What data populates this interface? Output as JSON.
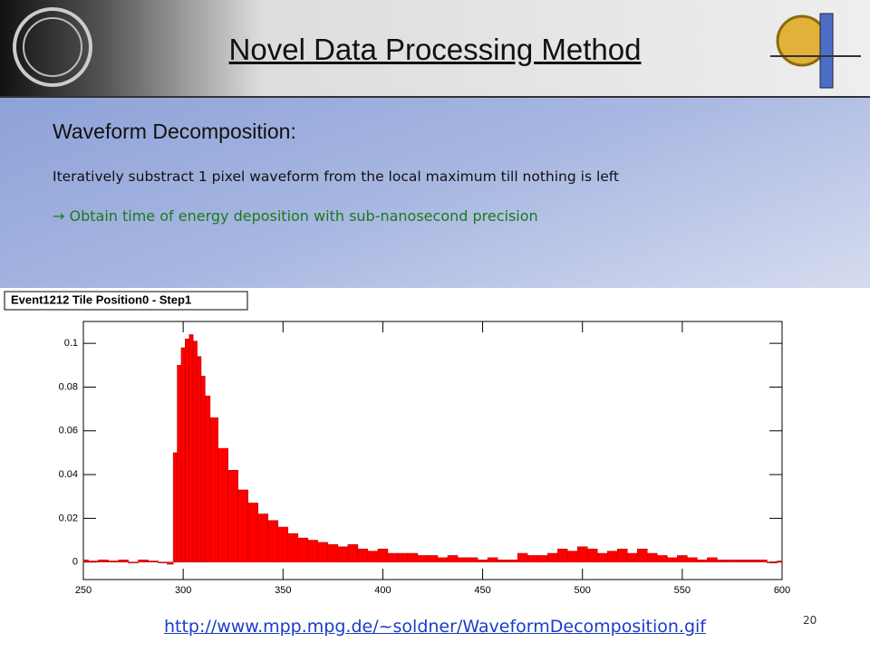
{
  "header": {
    "title": "Novel Data Processing Method"
  },
  "body": {
    "heading": "Waveform Decomposition:",
    "line": "Iteratively substract 1 pixel waveform from the local maximum till nothing is left",
    "result": "→ Obtain time of energy deposition with sub-nanosecond precision"
  },
  "chart_data": {
    "type": "bar",
    "title": "Event1212 Tile Position0 - Step1",
    "color": "#ff0000",
    "x": [
      250,
      255,
      260,
      265,
      270,
      275,
      280,
      285,
      290,
      294,
      296,
      298,
      300,
      302,
      304,
      306,
      308,
      310,
      312,
      315,
      320,
      325,
      330,
      335,
      340,
      345,
      350,
      355,
      360,
      365,
      370,
      375,
      380,
      385,
      390,
      395,
      400,
      405,
      410,
      415,
      420,
      425,
      430,
      435,
      440,
      445,
      450,
      455,
      460,
      465,
      470,
      475,
      480,
      485,
      490,
      495,
      500,
      505,
      510,
      515,
      520,
      525,
      530,
      535,
      540,
      545,
      550,
      555,
      560,
      565,
      570,
      575,
      580,
      585,
      590,
      595,
      600
    ],
    "values": [
      0.001,
      0.0005,
      0.001,
      0.0005,
      0.001,
      0,
      0.001,
      0.0005,
      0,
      -0.001,
      0.05,
      0.09,
      0.098,
      0.102,
      0.104,
      0.101,
      0.094,
      0.085,
      0.076,
      0.066,
      0.052,
      0.042,
      0.033,
      0.027,
      0.022,
      0.019,
      0.016,
      0.013,
      0.011,
      0.01,
      0.009,
      0.008,
      0.007,
      0.008,
      0.006,
      0.005,
      0.006,
      0.004,
      0.004,
      0.004,
      0.003,
      0.003,
      0.002,
      0.003,
      0.002,
      0.002,
      0.001,
      0.002,
      0.001,
      0.001,
      0.004,
      0.003,
      0.003,
      0.004,
      0.006,
      0.005,
      0.007,
      0.006,
      0.004,
      0.005,
      0.006,
      0.004,
      0.006,
      0.004,
      0.003,
      0.002,
      0.003,
      0.002,
      0.001,
      0.002,
      0.001,
      0.001,
      0.001,
      0.001,
      0.001,
      0,
      0.0005
    ],
    "xlim": [
      250,
      600
    ],
    "ylim": [
      -0.008,
      0.11
    ],
    "xticks": [
      250,
      300,
      350,
      400,
      450,
      500,
      550,
      600
    ],
    "yticks": [
      0,
      0.02,
      0.04,
      0.06,
      0.08,
      0.1
    ]
  },
  "footer": {
    "link": "http://www.mpp.mpg.de/~soldner/WaveformDecomposition.gif",
    "page_number": "20"
  }
}
